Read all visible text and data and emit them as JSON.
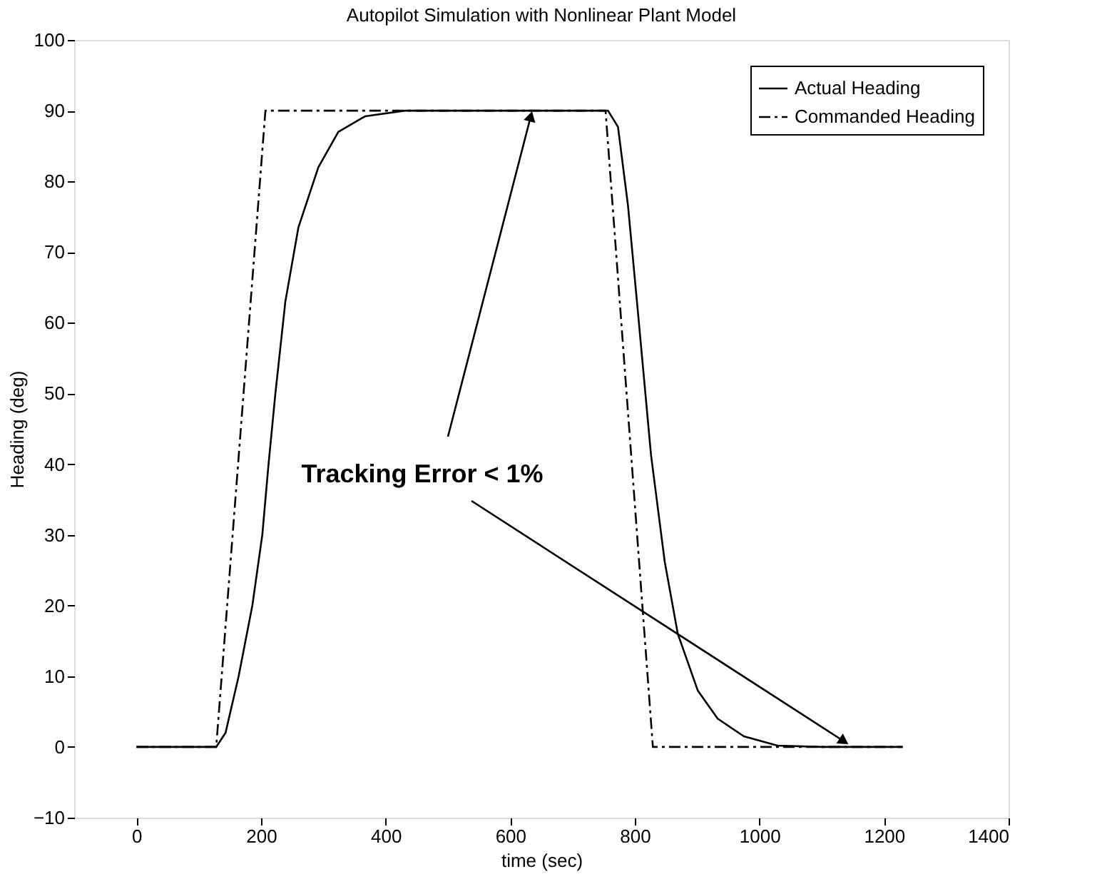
{
  "chart_data": {
    "type": "line",
    "title": "Autopilot Simulation with Nonlinear Plant Model",
    "xlabel": "time (sec)",
    "ylabel": "Heading (deg)",
    "xlim": [
      -100,
      1400
    ],
    "xticks": [
      0,
      200,
      400,
      600,
      800,
      1000,
      1200,
      1400
    ],
    "ylim": [
      -10,
      100
    ],
    "yticks": [
      -10,
      0,
      10,
      20,
      30,
      40,
      50,
      60,
      70,
      80,
      90,
      100
    ],
    "grid": false,
    "legend": "top right",
    "marker": "none",
    "annotations": [
      {
        "text": "Tracking Error < 1%",
        "x": 633,
        "y": 89.2
      }
    ],
    "series": [
      {
        "name": "Actual Heading",
        "color": "#000000",
        "line_style": "solid",
        "x": [
          0,
          128,
          143,
          164,
          186,
          202,
          212,
          223,
          239,
          260,
          292,
          324,
          367,
          431,
          580,
          757,
          773,
          789,
          805,
          826,
          848,
          869,
          901,
          933,
          975,
          1029,
          1100,
          1230
        ],
        "values": [
          0,
          0,
          2,
          10,
          20,
          30,
          40,
          50,
          63,
          73.5,
          82,
          87,
          89.2,
          90,
          90,
          90,
          87.7,
          76.6,
          61.5,
          41.3,
          26.2,
          16,
          8,
          4,
          1.5,
          0.2,
          0,
          0
        ]
      },
      {
        "name": "Commanded Heading",
        "color": "#000000",
        "line_style": "dashdot",
        "x": [
          0,
          128,
          207,
          753,
          829,
          1230
        ],
        "values": [
          0,
          0,
          90,
          90,
          0,
          0
        ]
      }
    ]
  }
}
